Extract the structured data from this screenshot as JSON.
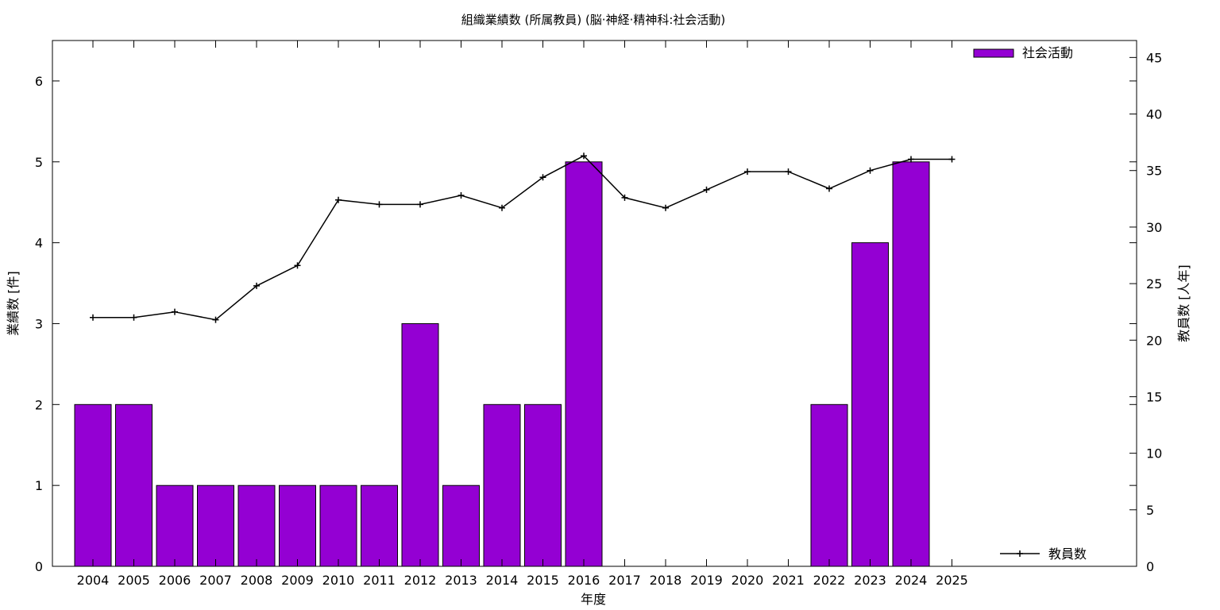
{
  "chart_data": {
    "type": "bar",
    "title": "組織業績数 (所属教員) (脳·神経·精神科:社会活動)",
    "xlabel": "年度",
    "ylabel": "業績数 [件]",
    "y2label": "教員数 [人年]",
    "categories": [
      "2004",
      "2005",
      "2006",
      "2007",
      "2008",
      "2009",
      "2010",
      "2011",
      "2012",
      "2013",
      "2014",
      "2015",
      "2016",
      "2017",
      "2018",
      "2019",
      "2020",
      "2021",
      "2022",
      "2023",
      "2024",
      "2025"
    ],
    "ylim": [
      0,
      6.5
    ],
    "y2lim": [
      0,
      46.5
    ],
    "yticks": [
      "0",
      "1",
      "2",
      "3",
      "4",
      "5",
      "6"
    ],
    "y2ticks": [
      "0",
      "5",
      "10",
      "15",
      "20",
      "25",
      "30",
      "35",
      "40",
      "45"
    ],
    "series": [
      {
        "name": "社会活動",
        "kind": "bar",
        "axis": "left",
        "color": "#9400d3",
        "values": [
          2,
          2,
          1,
          1,
          1,
          1,
          1,
          1,
          3,
          1,
          2,
          2,
          5,
          0,
          0,
          0,
          0,
          0,
          2,
          4,
          5,
          0
        ]
      },
      {
        "name": "教員数",
        "kind": "line",
        "axis": "right",
        "color": "#000000",
        "values": [
          22.0,
          22.0,
          22.5,
          21.8,
          24.8,
          26.6,
          32.4,
          32.0,
          32.0,
          32.8,
          31.7,
          34.4,
          36.3,
          32.6,
          31.7,
          33.3,
          34.9,
          34.9,
          33.4,
          35.0,
          36.0,
          36.0
        ]
      }
    ],
    "legend": [
      "top-right",
      "bottom-right"
    ],
    "grid": false
  }
}
